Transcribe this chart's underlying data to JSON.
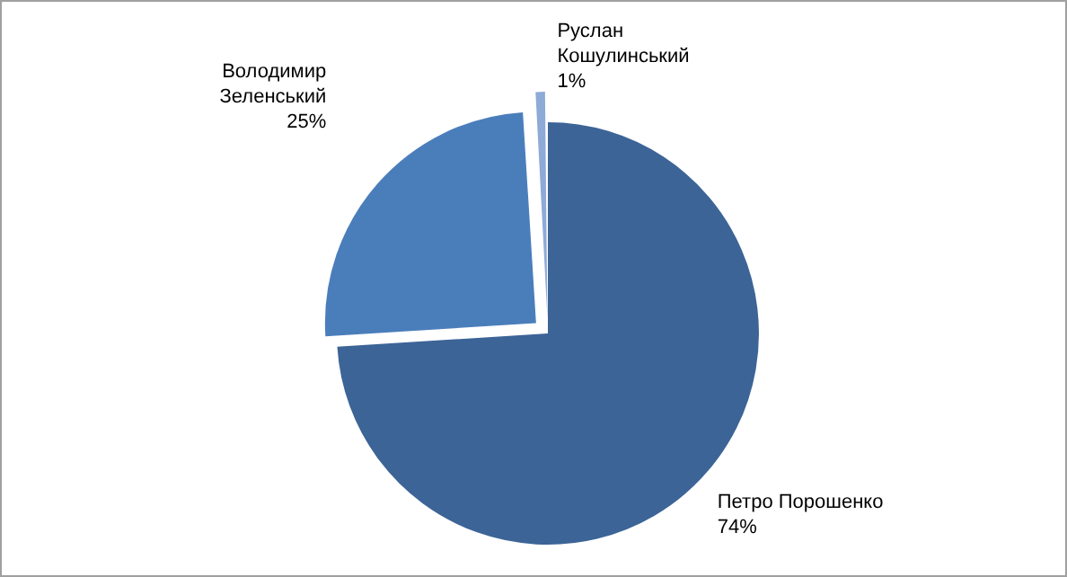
{
  "chart_data": {
    "type": "pie",
    "categories": [
      "Петро Порошенко",
      "Володимир Зеленський",
      "Руслан Кошулинський"
    ],
    "values": [
      74,
      25,
      1
    ],
    "value_labels": [
      "74%",
      "25%",
      "1%"
    ],
    "colors": [
      "#3c6497",
      "#4a7ebb",
      "#8eaad6"
    ],
    "legend": false
  }
}
